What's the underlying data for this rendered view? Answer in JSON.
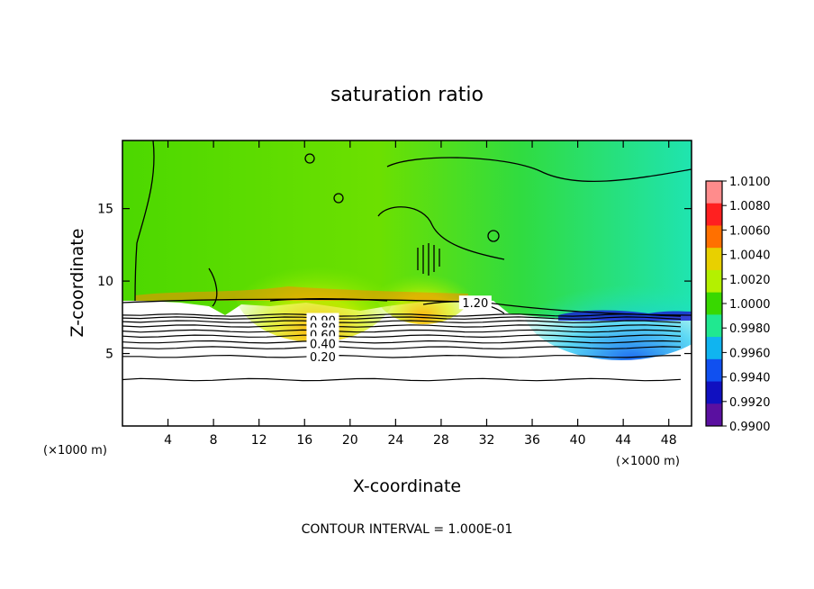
{
  "chart_data": {
    "type": "heatmap",
    "title": "saturation ratio",
    "xlabel": "X-coordinate",
    "ylabel": "Z-coordinate",
    "x_unit_left": "(×1000 m)",
    "x_unit_right": "(×1000 m)",
    "xlim": [
      0,
      50
    ],
    "ylim": [
      0,
      19.7
    ],
    "x_ticks": [
      4,
      8,
      12,
      16,
      20,
      24,
      28,
      32,
      36,
      40,
      44,
      48
    ],
    "y_ticks": [
      5,
      10,
      15
    ],
    "colorbar": {
      "ticks": [
        "1.0100",
        "1.0080",
        "1.0060",
        "1.0040",
        "1.0020",
        "1.0000",
        "0.9980",
        "0.9960",
        "0.9940",
        "0.9920",
        "0.9900"
      ],
      "colors": [
        "#ff8c8c",
        "#ff2020",
        "#ff7000",
        "#e8d000",
        "#b4f000",
        "#38d800",
        "#20e890",
        "#10b4f0",
        "#1050f0",
        "#1010c0",
        "#5a10a0"
      ]
    },
    "contour_labels": [
      {
        "text": "1.20",
        "x": 31.0,
        "y": 8.5
      },
      {
        "text": "0.90",
        "x": 17.6,
        "y": 7.3
      },
      {
        "text": "0.80",
        "x": 17.6,
        "y": 6.8
      },
      {
        "text": "0.60",
        "x": 17.6,
        "y": 6.3
      },
      {
        "text": "0.40",
        "x": 17.6,
        "y": 5.7
      },
      {
        "text": "0.20",
        "x": 17.6,
        "y": 4.8
      }
    ],
    "contour_levels_y": [
      3.2,
      4.8,
      5.4,
      5.8,
      6.2,
      6.55,
      6.9,
      7.2,
      7.45,
      7.65
    ]
  },
  "footer_note": "CONTOUR INTERVAL = 1.000E-01"
}
